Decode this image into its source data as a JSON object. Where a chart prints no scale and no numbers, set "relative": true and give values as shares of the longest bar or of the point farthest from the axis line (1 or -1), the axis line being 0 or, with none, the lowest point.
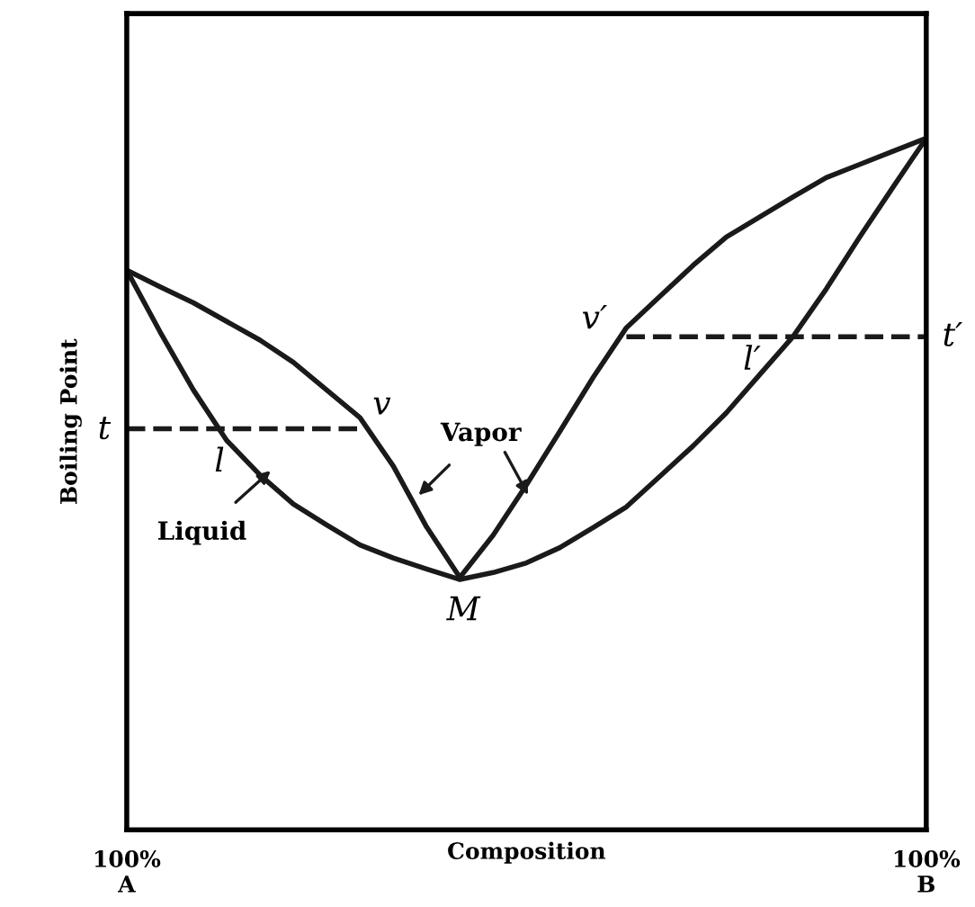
{
  "chart_data": {
    "type": "line",
    "relative": true,
    "xlabel": "Composition",
    "ylabel": "Boiling Point",
    "legend": false,
    "marker": "none",
    "categories": [
      "100%\nA",
      null,
      null,
      null,
      null,
      null,
      null,
      null,
      null,
      null,
      null,
      null,
      null,
      null,
      null,
      null,
      null,
      null,
      null,
      null,
      null,
      null,
      null,
      null,
      "100%\nB"
    ],
    "series": [
      {
        "color": "#1a1a1a",
        "line_style": "solid",
        "values": [
          0.809,
          0.785,
          0.762,
          0.735,
          0.708,
          0.676,
          0.636,
          0.596,
          0.526,
          0.438,
          0.365,
          0.426,
          0.499,
          0.576,
          0.654,
          0.726,
          0.771,
          0.816,
          0.857,
          0.886,
          0.915,
          0.943,
          0.962,
          0.981,
          1.0
        ]
      },
      {
        "color": "#1a1a1a",
        "line_style": "solid",
        "values": [
          0.809,
          0.72,
          0.636,
          0.563,
          0.513,
          0.471,
          0.441,
          0.412,
          0.393,
          0.377,
          0.362,
          0.372,
          0.386,
          0.408,
          0.437,
          0.467,
          0.511,
          0.555,
          0.603,
          0.658,
          0.713,
          0.782,
          0.857,
          0.929,
          1.0
        ]
      },
      {
        "color": "#1a1a1a",
        "line_style": "dashed",
        "values": [
          0.58,
          0.58,
          0.58,
          0.58,
          0.58,
          0.58,
          0.58,
          0.58,
          null,
          null,
          null,
          null,
          null,
          null,
          null,
          null,
          null,
          null,
          null,
          null,
          null,
          null,
          null,
          null,
          null
        ]
      },
      {
        "color": "#1a1a1a",
        "line_style": "dashed",
        "values": [
          null,
          null,
          null,
          null,
          null,
          null,
          null,
          null,
          null,
          null,
          null,
          null,
          null,
          null,
          null,
          0.713,
          0.713,
          0.713,
          0.713,
          0.713,
          0.713,
          0.713,
          0.713,
          0.713,
          0.713
        ]
      }
    ],
    "annotations": [
      "t",
      "l",
      "v",
      "Vapor",
      "Liquid",
      "M",
      "v′",
      "l′",
      "t′"
    ]
  }
}
